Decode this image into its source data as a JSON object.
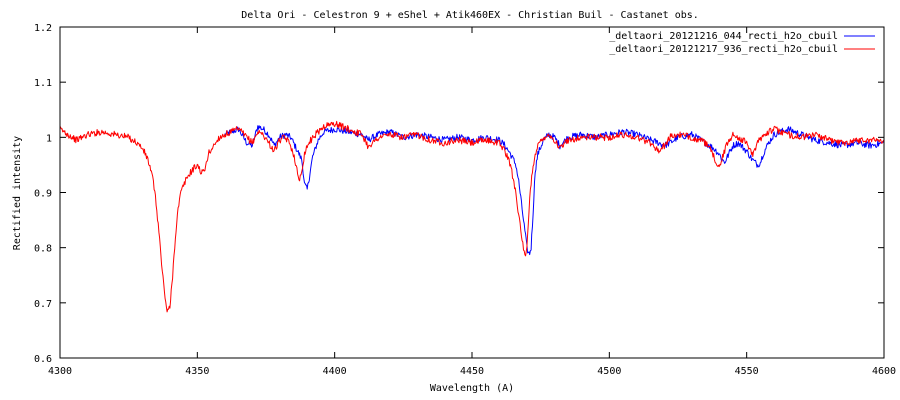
{
  "chart_data": {
    "type": "line",
    "title": "Delta Ori - Celestron 9 + eShel + Atik460EX - Christian Buil - Castanet obs.",
    "xlabel": "Wavelength (A)",
    "ylabel": "Rectified intensity",
    "xlim": [
      4300,
      4600
    ],
    "ylim": [
      0.6,
      1.2
    ],
    "x_ticks": [
      "4300",
      "4350",
      "4400",
      "4450",
      "4500",
      "4550",
      "4600"
    ],
    "y_ticks": [
      "0.6",
      "0.7",
      "0.8",
      "0.9",
      "1",
      "1.1",
      "1.2"
    ],
    "grid": false,
    "legend_position": "top-right",
    "series": [
      {
        "name": "_deltaori_20121216_044_recti_h2o_cbuil",
        "color": "#0000ff",
        "x": [
          4360,
          4365,
          4368,
          4370,
          4372,
          4374,
          4376,
          4378,
          4380,
          4382,
          4384,
          4385,
          4386,
          4387,
          4388,
          4388.5,
          4389,
          4390,
          4391,
          4392,
          4394,
          4396,
          4400,
          4405,
          4410,
          4412,
          4414,
          4416,
          4420,
          4425,
          4430,
          4435,
          4440,
          4445,
          4450,
          4455,
          4460,
          4462,
          4464,
          4466,
          4467,
          4468,
          4469,
          4470,
          4470.5,
          4471,
          4471.5,
          4472,
          4472.5,
          4473,
          4474,
          4476,
          4478,
          4480,
          4482,
          4485,
          4490,
          4495,
          4500,
          4505,
          4510,
          4515,
          4518,
          4520,
          4522,
          4525,
          4530,
          4535,
          4538,
          4540,
          4541,
          4542,
          4543,
          4544,
          4545,
          4547,
          4550,
          4552,
          4554,
          4555,
          4556,
          4558,
          4560,
          4565,
          4570,
          4575,
          4580,
          4585,
          4590,
          4595,
          4600
        ],
        "y": [
          1.005,
          1.015,
          0.99,
          0.985,
          1.02,
          1.015,
          1.005,
          0.985,
          1.0,
          1.005,
          1.0,
          0.99,
          0.98,
          0.97,
          0.96,
          0.94,
          0.915,
          0.905,
          0.935,
          0.965,
          0.995,
          1.01,
          1.015,
          1.01,
          1.005,
          0.995,
          1.0,
          1.005,
          1.01,
          1.0,
          1.005,
          1.0,
          0.995,
          1.0,
          0.995,
          1.0,
          0.995,
          0.985,
          0.97,
          0.95,
          0.92,
          0.88,
          0.84,
          0.8,
          0.79,
          0.79,
          0.8,
          0.84,
          0.89,
          0.94,
          0.97,
          0.995,
          1.005,
          1.0,
          0.985,
          1.0,
          1.005,
          1.0,
          1.005,
          1.01,
          1.005,
          0.995,
          0.99,
          0.985,
          0.99,
          1.0,
          1.005,
          0.99,
          0.98,
          0.97,
          0.96,
          0.955,
          0.965,
          0.975,
          0.985,
          0.99,
          0.975,
          0.96,
          0.95,
          0.955,
          0.97,
          0.99,
          1.005,
          1.015,
          1.005,
          0.995,
          0.99,
          0.985,
          0.99,
          0.985,
          0.99
        ]
      },
      {
        "name": "_deltaori_20121217_936_recti_h2o_cbuil",
        "color": "#ff0000",
        "x": [
          4300,
          4303,
          4306,
          4310,
          4315,
          4320,
          4325,
          4328,
          4330,
          4332,
          4334,
          4335,
          4336,
          4337,
          4338,
          4339,
          4340,
          4341,
          4342,
          4343,
          4344,
          4346,
          4348,
          4350,
          4351,
          4352,
          4353,
          4354,
          4356,
          4358,
          4360,
          4365,
          4368,
          4370,
          4372,
          4374,
          4376,
          4378,
          4380,
          4382,
          4384,
          4385,
          4386,
          4386.5,
          4387,
          4388,
          4389,
          4390,
          4392,
          4394,
          4396,
          4400,
          4405,
          4410,
          4412,
          4414,
          4416,
          4420,
          4425,
          4430,
          4435,
          4440,
          4445,
          4450,
          4455,
          4460,
          4462,
          4464,
          4466,
          4467,
          4468,
          4469,
          4469.5,
          4470,
          4470.5,
          4471,
          4472,
          4473,
          4474,
          4476,
          4478,
          4480,
          4482,
          4485,
          4490,
          4495,
          4500,
          4505,
          4510,
          4515,
          4518,
          4520,
          4522,
          4525,
          4530,
          4535,
          4537,
          4538,
          4539,
          4540,
          4541,
          4542,
          4543,
          4545,
          4547,
          4550,
          4551,
          4552,
          4553,
          4554,
          4556,
          4558,
          4560,
          4565,
          4570,
          4575,
          4580,
          4585,
          4590,
          4595,
          4600
        ],
        "y": [
          1.015,
          1.005,
          0.995,
          1.005,
          1.01,
          1.005,
          1.0,
          0.99,
          0.98,
          0.96,
          0.92,
          0.88,
          0.83,
          0.77,
          0.72,
          0.685,
          0.69,
          0.75,
          0.82,
          0.87,
          0.9,
          0.925,
          0.94,
          0.95,
          0.94,
          0.935,
          0.945,
          0.97,
          0.985,
          1.0,
          1.005,
          1.015,
          1.0,
          0.99,
          1.01,
          1.005,
          0.99,
          0.975,
          0.995,
          1.0,
          0.985,
          0.97,
          0.95,
          0.93,
          0.92,
          0.94,
          0.97,
          0.985,
          1.0,
          1.01,
          1.02,
          1.025,
          1.015,
          1.005,
          0.985,
          0.99,
          1.0,
          1.005,
          1.0,
          1.005,
          0.995,
          0.99,
          0.995,
          0.99,
          0.995,
          0.99,
          0.975,
          0.95,
          0.9,
          0.86,
          0.82,
          0.79,
          0.78,
          0.8,
          0.84,
          0.89,
          0.94,
          0.97,
          0.985,
          1.0,
          1.005,
          0.995,
          0.98,
          0.995,
          1.0,
          1.0,
          1.0,
          1.005,
          1.0,
          0.99,
          0.975,
          0.985,
          1.0,
          1.005,
          1.0,
          0.99,
          0.975,
          0.965,
          0.955,
          0.945,
          0.96,
          0.975,
          0.99,
          1.005,
          1.0,
          0.99,
          0.98,
          0.97,
          0.975,
          0.99,
          1.005,
          1.01,
          1.015,
          1.005,
          1.0,
          1.005,
          0.995,
          0.99,
          0.995,
          0.995,
          0.995
        ]
      }
    ]
  }
}
